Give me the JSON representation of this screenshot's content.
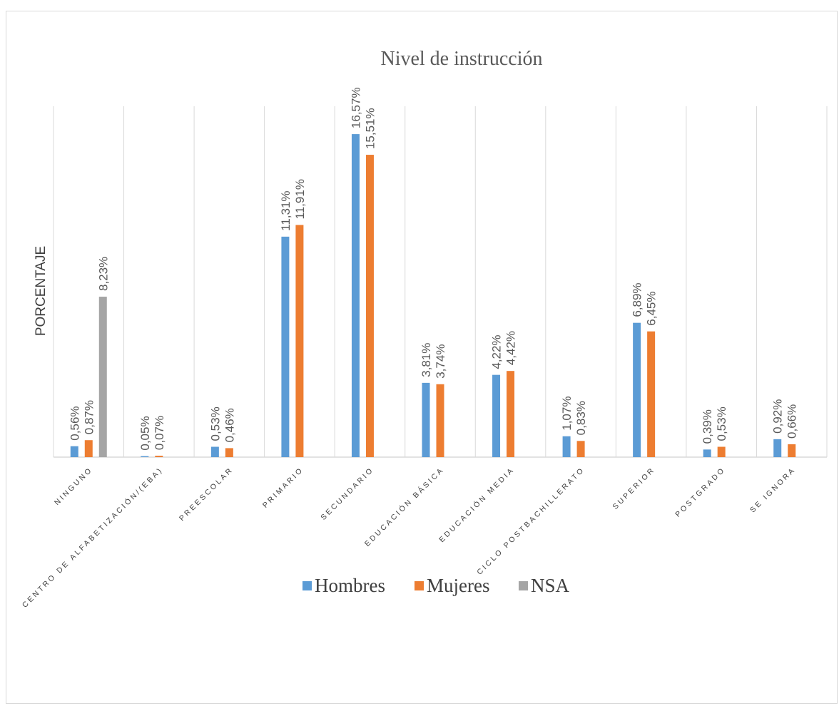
{
  "chart_data": {
    "type": "bar",
    "title": "Nivel de  instrucción",
    "xlabel": "",
    "ylabel": "PORCENTAJE",
    "ylim": [
      0,
      18
    ],
    "grid": "vertical",
    "legend_position": "bottom",
    "categories": [
      "NINGUNO",
      "CENTRO DE ALFABETIZACIÓN/(EBA)",
      "PREESCOLAR",
      "PRIMARIO",
      "SECUNDARIO",
      "EDUCACIÓN BÁSICA",
      "EDUCACIÓN MEDIA",
      "CICLO POSTBACHILLERATO",
      "SUPERIOR",
      "POSTGRADO",
      "SE IGNORA"
    ],
    "series": [
      {
        "name": "Hombres",
        "color": "#5b9bd5",
        "values": [
          0.56,
          0.05,
          0.53,
          11.31,
          16.57,
          3.81,
          4.22,
          1.07,
          6.89,
          0.39,
          0.92
        ],
        "labels": [
          "0,56%",
          "0,05%",
          "0,53%",
          "11,31%",
          "16,57%",
          "3,81%",
          "4,22%",
          "1,07%",
          "6,89%",
          "0,39%",
          "0,92%"
        ]
      },
      {
        "name": "Mujeres",
        "color": "#ed7d31",
        "values": [
          0.87,
          0.07,
          0.46,
          11.91,
          15.51,
          3.74,
          4.42,
          0.83,
          6.45,
          0.53,
          0.66
        ],
        "labels": [
          "0,87%",
          "0,07%",
          "0,46%",
          "11,91%",
          "15,51%",
          "3,74%",
          "4,42%",
          "0,83%",
          "6,45%",
          "0,53%",
          "0,66%"
        ]
      },
      {
        "name": "NSA",
        "color": "#a5a5a5",
        "values": [
          8.23,
          null,
          null,
          null,
          null,
          null,
          null,
          null,
          null,
          null,
          null
        ],
        "labels": [
          "8,23%",
          "",
          "",
          "",
          "",
          "",
          "",
          "",
          "",
          "",
          ""
        ]
      }
    ]
  }
}
